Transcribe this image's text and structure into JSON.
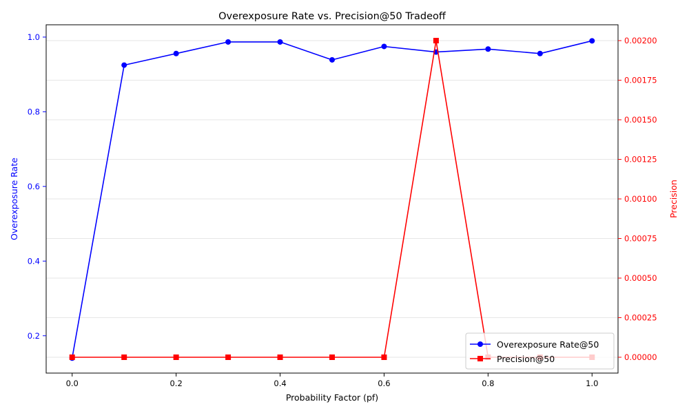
{
  "chart_data": {
    "type": "line",
    "title": "Overexposure Rate vs. Precision@50 Tradeoff",
    "xlabel": "Probability Factor (pf)",
    "ylabel_left": "Overexposure Rate",
    "ylabel_right": "Precision",
    "x": [
      0.0,
      0.1,
      0.2,
      0.3,
      0.4,
      0.5,
      0.6,
      0.7,
      0.8,
      0.9,
      1.0
    ],
    "xlim": [
      -0.05,
      1.05
    ],
    "ylim_left": [
      0.1,
      1.033
    ],
    "ylim_right": [
      -0.0001,
      0.0021
    ],
    "x_ticks": [
      "0.0",
      "0.2",
      "0.4",
      "0.6",
      "0.8",
      "1.0"
    ],
    "left_ticks": [
      "0.2",
      "0.4",
      "0.6",
      "0.8",
      "1.0"
    ],
    "right_ticks": [
      "0.00000",
      "0.00025",
      "0.00050",
      "0.00075",
      "0.00100",
      "0.00125",
      "0.00150",
      "0.00175",
      "0.00200"
    ],
    "grid": true,
    "legend_position": "lower-right",
    "series": [
      {
        "name": "Overexposure Rate@50",
        "axis": "left",
        "color": "#0000ff",
        "marker": "circle",
        "values": [
          0.14,
          0.925,
          0.956,
          0.987,
          0.987,
          0.939,
          0.975,
          0.96,
          0.968,
          0.956,
          0.99
        ]
      },
      {
        "name": "Precision@50",
        "axis": "right",
        "color": "#ff0000",
        "marker": "square",
        "values": [
          0.0,
          0.0,
          0.0,
          0.0,
          0.0,
          0.0,
          0.0,
          0.002,
          0.0,
          0.0,
          0.0
        ]
      }
    ]
  }
}
